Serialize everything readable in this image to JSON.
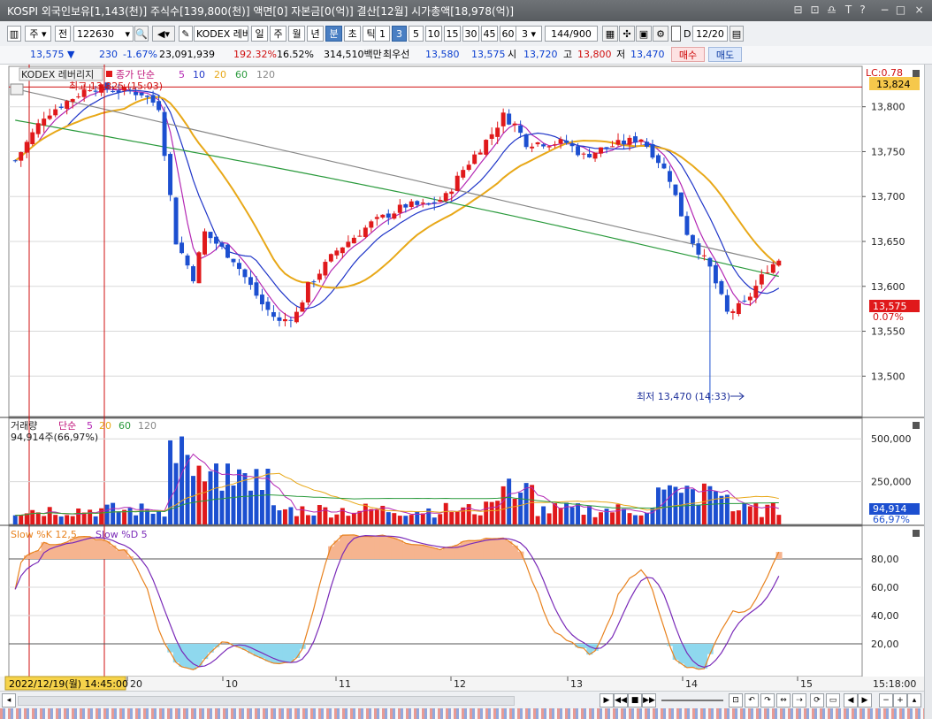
{
  "window": {
    "title": "KOSPI 외국인보유[1,143(천)] 주식수[139,800(천)] 액면[0] 자본금[0(억)] 결산[12월] 시가총액[18,978(억)]"
  },
  "toolbar": {
    "market": "주",
    "view": "전",
    "code": "122630",
    "name": "KODEX 레버",
    "periods": [
      "일",
      "주",
      "월",
      "년",
      "분",
      "초",
      "틱"
    ],
    "selected_period": "분",
    "intervals": [
      "1",
      "3",
      "5",
      "10",
      "15",
      "30",
      "45",
      "60"
    ],
    "selected_interval": "3",
    "interval_value": "3",
    "count": "144",
    "count_total": "/900",
    "date": "12/20",
    "date_prefix": "D"
  },
  "quote": {
    "price": "13,575",
    "arrow": "▼",
    "change": "230",
    "change_pct": "-1.67%",
    "volume": "23,091,939",
    "vol_ratio": "192.32%",
    "turnover_pct": "16.52%",
    "amount": "314,510백만",
    "bid_label": "최우선",
    "bid": "13,580",
    "ask": "13,575",
    "open_label": "시",
    "open": "13,720",
    "high_label": "고",
    "high": "13,800",
    "low_label": "저",
    "low": "13,470",
    "buy_label": "매수",
    "sell_label": "매도"
  },
  "chart_data": [
    {
      "type": "candlestick",
      "name": "KODEX 레버리지",
      "legend": {
        "ma_prefix": "종가 단순",
        "periods": [
          "5",
          "10",
          "20",
          "60",
          "120"
        ]
      },
      "ylim": [
        13455,
        13845
      ],
      "y_ticks": [
        13500,
        13550,
        13600,
        13650,
        13700,
        13750,
        13800
      ],
      "y_tick_labels": [
        "13,500",
        "13,550",
        "13,600",
        "13,650",
        "13,700",
        "13,750",
        "13,800"
      ],
      "right_labels": {
        "lc": "LC:0.78",
        "top_price": "13,824",
        "cur_price": "13,575",
        "cur_pct": "0.07%"
      },
      "max_annotation": "최고 13,825 (15:03)",
      "min_annotation": "최저 13,470 (14:33)",
      "max_price": 13825,
      "min_price": 13470,
      "n_candles": 144,
      "path_points": [
        [
          0,
          13740
        ],
        [
          5,
          13790
        ],
        [
          13,
          13822
        ],
        [
          22,
          13815
        ],
        [
          25,
          13800
        ],
        [
          28,
          13650
        ],
        [
          31,
          13610
        ],
        [
          33,
          13660
        ],
        [
          38,
          13630
        ],
        [
          43,
          13580
        ],
        [
          46,
          13560
        ],
        [
          49,
          13570
        ],
        [
          51,
          13600
        ],
        [
          56,
          13640
        ],
        [
          62,
          13670
        ],
        [
          68,
          13690
        ],
        [
          72,
          13690
        ],
        [
          75,
          13700
        ],
        [
          78,
          13730
        ],
        [
          83,
          13770
        ],
        [
          85,
          13790
        ],
        [
          87,
          13780
        ],
        [
          89,
          13760
        ],
        [
          93,
          13760
        ],
        [
          96,
          13760
        ],
        [
          99,
          13745
        ],
        [
          103,
          13755
        ],
        [
          106,
          13760
        ],
        [
          109,
          13765
        ],
        [
          112,
          13740
        ],
        [
          114,
          13720
        ],
        [
          117,
          13660
        ],
        [
          121,
          13620
        ],
        [
          124,
          13570
        ],
        [
          127,
          13580
        ],
        [
          131,
          13620
        ],
        [
          133,
          13630
        ]
      ]
    },
    {
      "type": "bar",
      "name": "거래량",
      "legend": {
        "ma_prefix": "단순",
        "periods": [
          "5",
          "20",
          "60",
          "120"
        ]
      },
      "info": "94,914주(66,97%)",
      "ylim": [
        0,
        620000
      ],
      "y_ticks": [
        250000,
        500000
      ],
      "y_tick_labels": [
        "250,000",
        "500,000"
      ],
      "right_labels": {
        "value": "94,914",
        "pct": "66,97%"
      }
    },
    {
      "type": "line",
      "name": "Slow %K 12,5",
      "legend_d": "Slow %D 5",
      "ylim": [
        0,
        100
      ],
      "y_ticks": [
        20,
        40,
        60,
        80
      ],
      "y_tick_labels": [
        "20,00",
        "40,00",
        "60,00",
        "80,00"
      ],
      "levels": [
        20,
        80
      ]
    }
  ],
  "xaxis": {
    "cursor_label": "2022/12/19(월) 14:45:00",
    "labels": [
      "20",
      "10",
      "11",
      "12",
      "13",
      "14",
      "15"
    ],
    "time_label": "15:18:00"
  },
  "colors": {
    "up": "#e0191b",
    "down": "#1c4fd0",
    "ma5": "#b428b4",
    "ma10": "#1f35c8",
    "ma20": "#e8a818",
    "ma60": "#2a9a3c",
    "ma120": "#888888",
    "stoch_k": "#e8821e",
    "stoch_d": "#7a2ab8"
  }
}
